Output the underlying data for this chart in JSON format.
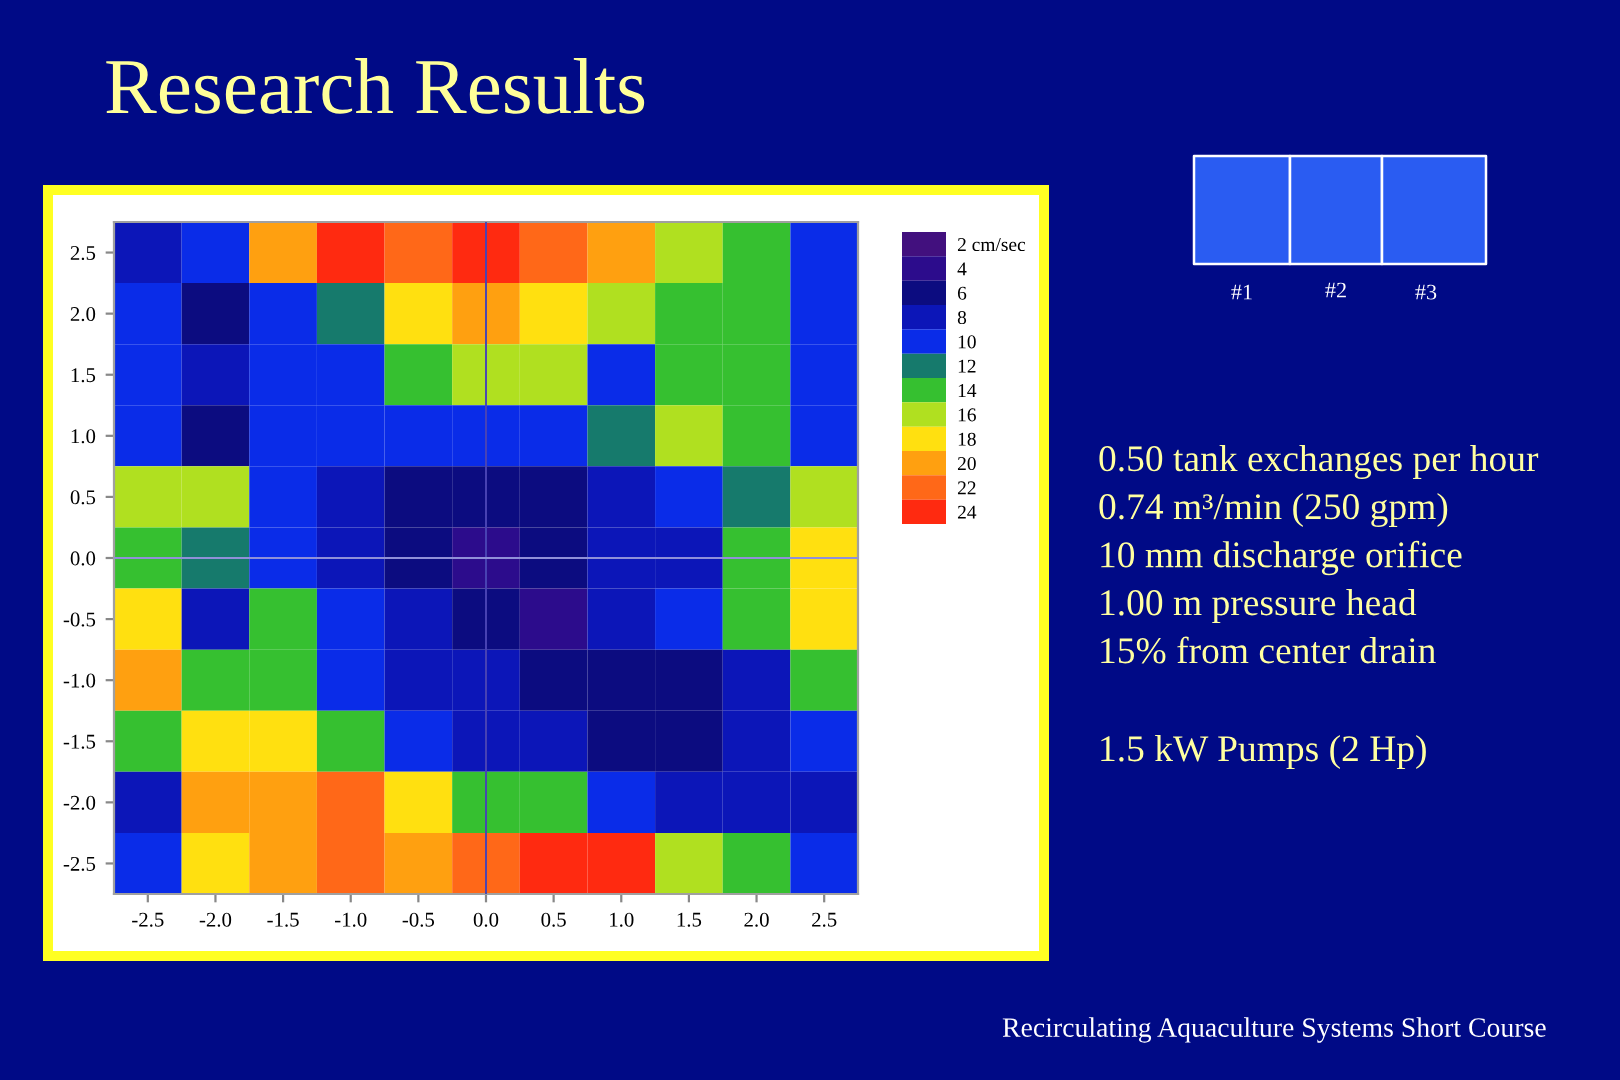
{
  "chart_data": {
    "type": "heatmap",
    "title": "Research Results",
    "categories": [
      "-2.5",
      "-2.0",
      "-1.5",
      "-1.0",
      "-0.5",
      "0.0",
      "0.5",
      "1.0",
      "1.5",
      "2.0",
      "2.5"
    ],
    "y_categories": [
      "2.5",
      "2.0",
      "1.5",
      "1.0",
      "0.5",
      "0.0",
      "-0.5",
      "-1.0",
      "-1.5",
      "-2.0",
      "-2.5"
    ],
    "cells": [
      [
        8,
        10,
        20,
        24,
        22,
        24,
        22,
        20,
        16,
        14,
        10
      ],
      [
        10,
        6,
        10,
        12,
        18,
        20,
        18,
        16,
        14,
        14,
        10
      ],
      [
        10,
        8,
        10,
        10,
        14,
        16,
        16,
        10,
        14,
        14,
        10
      ],
      [
        10,
        6,
        10,
        10,
        10,
        10,
        10,
        12,
        16,
        14,
        10
      ],
      [
        16,
        16,
        10,
        8,
        6,
        6,
        6,
        8,
        10,
        12,
        16
      ],
      [
        14,
        12,
        10,
        8,
        6,
        4,
        6,
        8,
        8,
        14,
        18
      ],
      [
        18,
        8,
        14,
        10,
        8,
        6,
        4,
        8,
        10,
        14,
        18
      ],
      [
        20,
        14,
        14,
        10,
        8,
        8,
        6,
        6,
        6,
        8,
        14
      ],
      [
        14,
        18,
        18,
        14,
        10,
        8,
        8,
        6,
        6,
        8,
        10
      ],
      [
        8,
        20,
        20,
        22,
        18,
        14,
        14,
        10,
        8,
        8,
        8
      ],
      [
        10,
        18,
        20,
        22,
        20,
        22,
        24,
        24,
        16,
        14,
        10
      ]
    ],
    "colors": [
      "#42107e",
      "#2c0c8c",
      "#0c0c80",
      "#0c16b8",
      "#0a2ce8",
      "#167a6c",
      "#36c030",
      "#b0e020",
      "#ffe010",
      "#ffa010",
      "#ff6818",
      "#ff2a10"
    ],
    "clim": [
      1,
      25
    ],
    "cticks": [
      {
        "value": 2,
        "label": "2 cm/sec"
      },
      4,
      6,
      8,
      10,
      12,
      14,
      16,
      18,
      20,
      22,
      24
    ],
    "ref_lines": [
      {
        "axis": "x",
        "value": "0.0",
        "color": "#4a44b4"
      },
      {
        "axis": "y",
        "value": "0.0",
        "color": "#9090d8"
      }
    ],
    "annotations": [
      "#1",
      "#2",
      "#3",
      "0.50 tank exchanges per hour",
      "0.74 m³/min (250 gpm)",
      "10 mm discharge orifice",
      "1.00 m pressure head",
      "15% from center drain",
      "1.5 kW Pumps (2 Hp)",
      "Recirculating Aquaculture Systems Short Course"
    ]
  }
}
